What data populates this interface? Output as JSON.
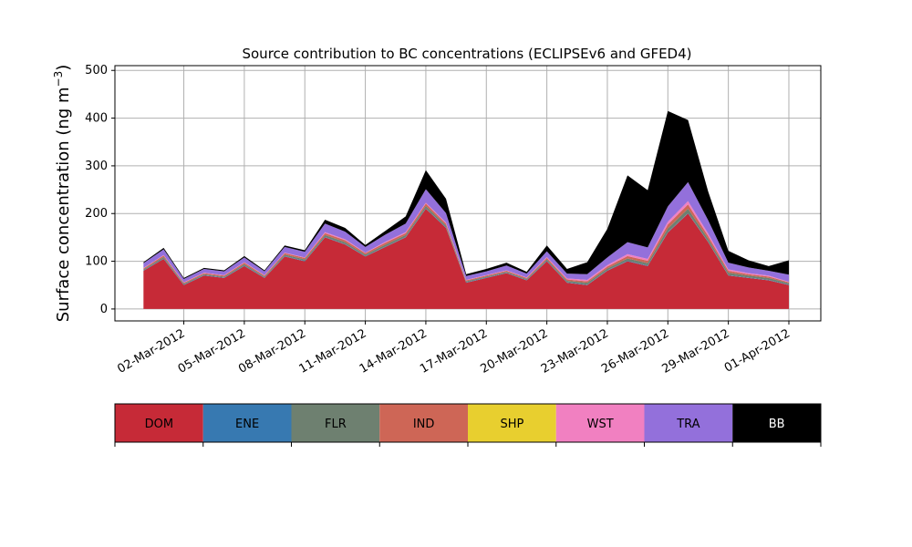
{
  "chart_data": {
    "type": "area",
    "stacked": true,
    "title": "Source contribution to BC concentrations (ECLIPSEv6 and GFED4)",
    "ylabel_main": "Surface concentration (ng m",
    "ylabel_unit_sup": "−3",
    "ylabel_close": ")",
    "xlabel": "",
    "ylim": [
      -25,
      510
    ],
    "xlim": [
      "2012-02-27T14:00",
      "2012-04-02T14:00"
    ],
    "grid": true,
    "y_ticks": [
      0,
      100,
      200,
      300,
      400,
      500
    ],
    "y_tick_labels": [
      "0",
      "100",
      "200",
      "300",
      "400",
      "500"
    ],
    "x_ticks": [
      "2012-03-02",
      "2012-03-05",
      "2012-03-08",
      "2012-03-11",
      "2012-03-14",
      "2012-03-17",
      "2012-03-20",
      "2012-03-23",
      "2012-03-26",
      "2012-03-29",
      "2012-04-01"
    ],
    "x_tick_labels": [
      "02-Mar-2012",
      "05-Mar-2012",
      "08-Mar-2012",
      "11-Mar-2012",
      "14-Mar-2012",
      "17-Mar-2012",
      "20-Mar-2012",
      "23-Mar-2012",
      "26-Mar-2012",
      "29-Mar-2012",
      "01-Apr-2012"
    ],
    "x_dates": [
      "2012-02-29",
      "2012-03-01",
      "2012-03-02",
      "2012-03-03",
      "2012-03-04",
      "2012-03-05",
      "2012-03-06",
      "2012-03-07",
      "2012-03-08",
      "2012-03-09",
      "2012-03-10",
      "2012-03-11",
      "2012-03-12",
      "2012-03-13",
      "2012-03-14",
      "2012-03-15",
      "2012-03-16",
      "2012-03-17",
      "2012-03-18",
      "2012-03-19",
      "2012-03-20",
      "2012-03-21",
      "2012-03-22",
      "2012-03-23",
      "2012-03-24",
      "2012-03-25",
      "2012-03-26",
      "2012-03-27",
      "2012-03-28",
      "2012-03-29",
      "2012-03-30",
      "2012-03-31",
      "2012-04-01"
    ],
    "series": [
      {
        "name": "DOM",
        "color": "#c62a37",
        "values": [
          80,
          105,
          50,
          70,
          65,
          90,
          65,
          110,
          100,
          150,
          135,
          110,
          130,
          150,
          210,
          170,
          55,
          65,
          75,
          60,
          100,
          55,
          50,
          80,
          100,
          90,
          160,
          200,
          140,
          70,
          65,
          60,
          50
        ]
      },
      {
        "name": "ENE",
        "color": "#3779b1",
        "values": [
          1,
          1,
          1,
          1,
          1,
          1,
          1,
          1,
          1,
          1,
          1,
          1,
          1,
          1,
          1,
          1,
          1,
          1,
          1,
          1,
          1,
          1,
          1,
          1,
          1,
          1,
          1,
          1,
          1,
          1,
          1,
          1,
          1
        ]
      },
      {
        "name": "FLR",
        "color": "#6e8070",
        "values": [
          2,
          3,
          2,
          2,
          2,
          3,
          2,
          3,
          3,
          4,
          4,
          3,
          4,
          4,
          5,
          4,
          2,
          2,
          2,
          2,
          3,
          3,
          4,
          4,
          5,
          5,
          8,
          9,
          6,
          5,
          4,
          4,
          3
        ]
      },
      {
        "name": "IND",
        "color": "#ce6656",
        "values": [
          2,
          3,
          2,
          2,
          2,
          3,
          2,
          3,
          3,
          4,
          4,
          3,
          4,
          4,
          5,
          4,
          2,
          2,
          2,
          2,
          3,
          3,
          3,
          4,
          5,
          5,
          8,
          9,
          6,
          4,
          3,
          3,
          2
        ]
      },
      {
        "name": "SHP",
        "color": "#e8cf2f",
        "values": [
          0,
          0,
          0,
          0,
          0,
          0,
          0,
          0,
          0,
          0,
          0,
          0,
          0,
          0,
          0,
          0,
          0,
          0,
          0,
          0,
          0,
          0,
          0,
          0,
          0,
          0,
          0,
          0,
          0,
          0,
          0,
          0,
          0
        ]
      },
      {
        "name": "WST",
        "color": "#f180c1",
        "values": [
          1,
          1,
          1,
          1,
          1,
          1,
          1,
          1,
          1,
          2,
          2,
          1,
          2,
          2,
          2,
          2,
          1,
          1,
          1,
          1,
          2,
          2,
          3,
          3,
          4,
          4,
          6,
          7,
          5,
          3,
          2,
          2,
          1
        ]
      },
      {
        "name": "TRA",
        "color": "#9370db",
        "values": [
          10,
          12,
          7,
          8,
          8,
          10,
          8,
          12,
          12,
          18,
          16,
          12,
          15,
          18,
          28,
          20,
          8,
          8,
          10,
          8,
          12,
          10,
          12,
          16,
          25,
          24,
          32,
          40,
          28,
          14,
          12,
          10,
          15
        ]
      },
      {
        "name": "BB",
        "color": "#000000",
        "values": [
          2,
          3,
          2,
          2,
          2,
          3,
          2,
          3,
          3,
          8,
          8,
          4,
          8,
          15,
          40,
          30,
          4,
          5,
          6,
          4,
          12,
          10,
          25,
          60,
          140,
          120,
          200,
          130,
          60,
          25,
          15,
          10,
          30
        ]
      }
    ],
    "legend_position": "bottom colorbar"
  }
}
